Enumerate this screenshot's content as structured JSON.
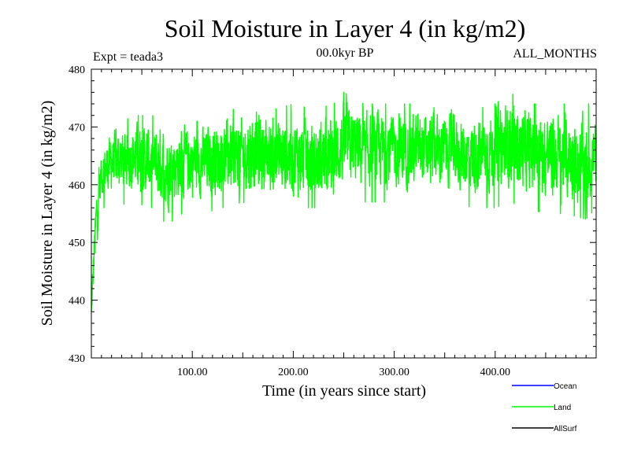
{
  "chart_data": {
    "type": "line",
    "title": "Soil Moisture in Layer 4 (in kg/m2)",
    "subtitle": "00.0kyr BP",
    "left_label": "Expt = teada3",
    "right_label": "ALL_MONTHS",
    "xlabel": "Time (in years since start)",
    "ylabel": "Soil Moisture in Layer 4 (in kg/m2)",
    "xlim": [
      0,
      500
    ],
    "ylim": [
      430,
      480
    ],
    "x_ticks": [
      100,
      200,
      300,
      400
    ],
    "x_tick_labels": [
      "100.00",
      "200.00",
      "300.00",
      "400.00"
    ],
    "y_ticks": [
      430,
      440,
      450,
      460,
      470,
      480
    ],
    "y_tick_labels": [
      "430",
      "440",
      "450",
      "460",
      "470",
      "480"
    ],
    "legend": [
      {
        "name": "Ocean",
        "color": "#0000ff"
      },
      {
        "name": "Land",
        "color": "#00ff00"
      },
      {
        "name": "AllSurf",
        "color": "#000000"
      }
    ],
    "series": [
      {
        "name": "Land",
        "color": "#00ff00",
        "description": "monthly values, ~6000 points; envelope summarized",
        "x": [
          0,
          2,
          5,
          10,
          20,
          40,
          60,
          75,
          90,
          110,
          130,
          150,
          160,
          180,
          200,
          220,
          240,
          250,
          270,
          300,
          320,
          350,
          380,
          400,
          415,
          430,
          450,
          470,
          490,
          500
        ],
        "mean": [
          438,
          446,
          455,
          462,
          464,
          465,
          464,
          463,
          464,
          464,
          465,
          465,
          466,
          465,
          465,
          464,
          465,
          467,
          466,
          466,
          466,
          466,
          465,
          466,
          467,
          466,
          465,
          465,
          464,
          465
        ],
        "min": [
          438,
          441,
          449,
          456,
          456,
          457,
          456,
          453,
          455,
          455,
          456,
          457,
          456,
          456,
          456,
          456,
          456,
          458,
          457,
          457,
          457,
          457,
          456,
          456,
          457,
          456,
          455,
          455,
          454,
          456
        ],
        "max": [
          441,
          452,
          460,
          466,
          469,
          472,
          472,
          471,
          471,
          471,
          472,
          474,
          475,
          473,
          474,
          473,
          474,
          476,
          474,
          474,
          474,
          473,
          473,
          474,
          476,
          474,
          474,
          474,
          474,
          474
        ]
      }
    ]
  }
}
